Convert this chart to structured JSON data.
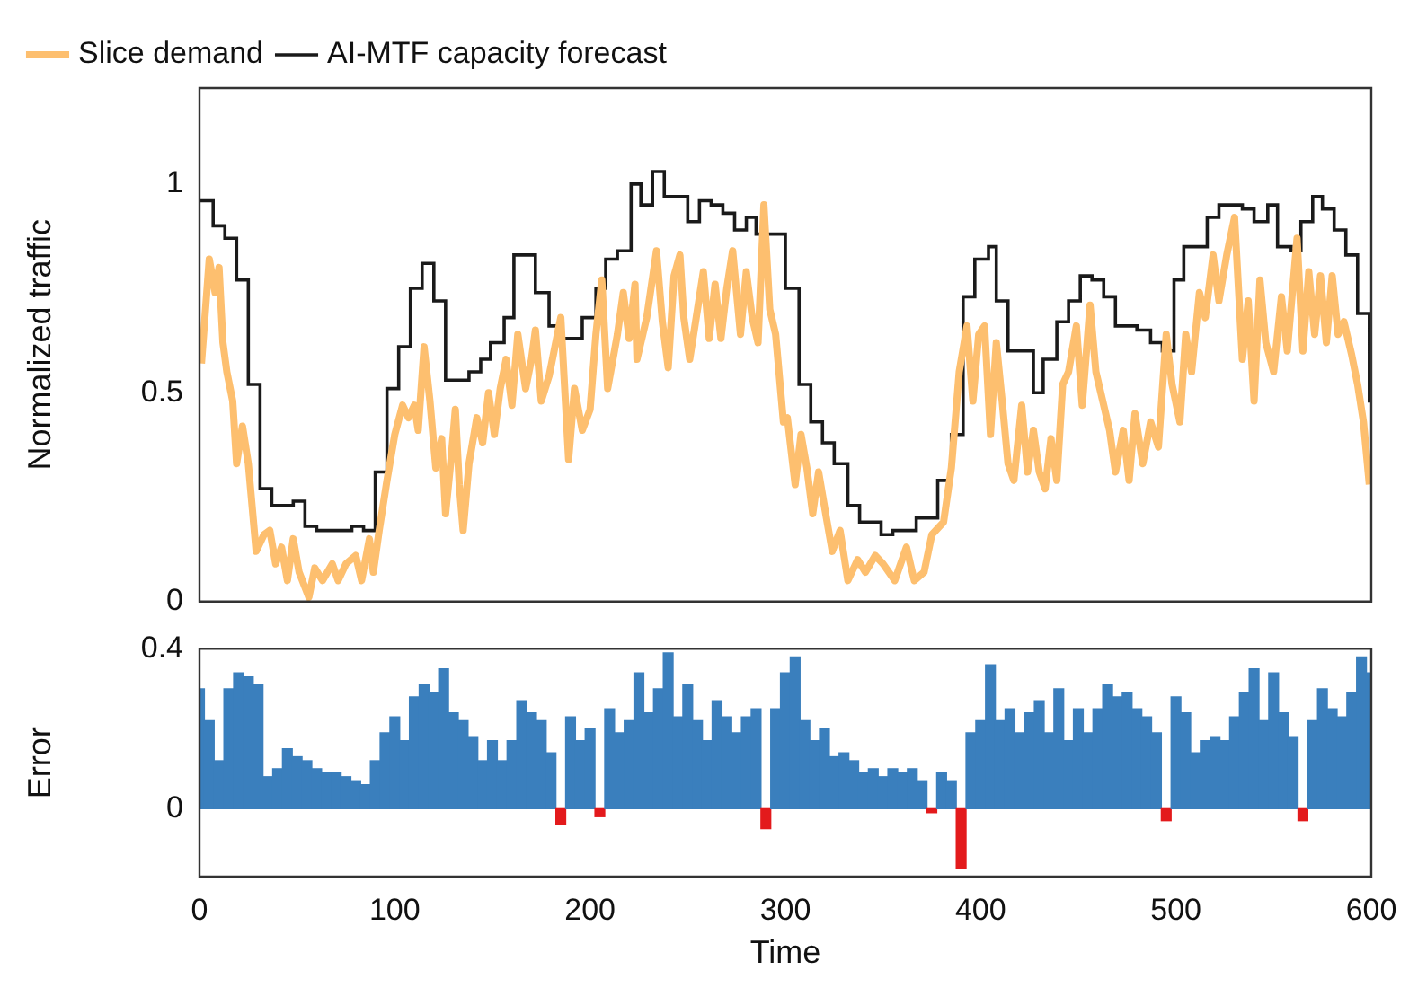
{
  "chart_data": [
    {
      "type": "line",
      "ylabel": "Normalized traffic",
      "xlim": [
        0,
        600
      ],
      "xticks": [
        0,
        100,
        200,
        300,
        400,
        500,
        600
      ],
      "ylim": [
        0,
        1.23
      ],
      "yticks": [
        0,
        0.5,
        1
      ],
      "tick_labels": "y",
      "grid": false,
      "legend": "top",
      "series": [
        {
          "name": "Slice demand",
          "color": "#fdbf6f",
          "x": [
            1,
            5,
            8,
            10,
            12,
            14,
            17,
            19,
            22,
            25,
            29,
            33,
            36,
            39,
            42,
            45,
            48,
            51,
            56,
            59,
            63,
            68,
            71,
            75,
            80,
            83,
            87,
            89,
            92,
            96,
            100,
            104,
            107,
            110,
            112,
            115,
            118,
            121,
            124,
            126,
            129,
            131,
            133,
            135,
            138,
            142,
            145,
            148,
            151,
            154,
            157,
            160,
            163,
            167,
            170,
            172,
            175,
            179,
            182,
            185,
            189,
            192,
            196,
            200,
            203,
            206,
            209,
            214,
            217,
            220,
            223,
            224,
            229,
            234,
            237,
            240,
            243,
            246,
            248,
            251,
            255,
            258,
            261,
            264,
            267,
            270,
            273,
            277,
            280,
            283,
            286,
            289,
            292,
            295,
            299,
            301,
            305,
            308,
            311,
            314,
            317,
            321,
            324,
            328,
            332,
            337,
            341,
            346,
            350,
            356,
            362,
            366,
            371,
            375,
            381,
            385,
            389,
            393,
            396,
            399,
            402,
            405,
            408,
            411,
            414,
            417,
            421,
            424,
            427,
            430,
            433,
            436,
            439,
            442,
            445,
            449,
            452,
            456,
            459,
            463,
            466,
            469,
            473,
            476,
            479,
            483,
            487,
            491,
            495,
            498,
            502,
            505,
            508,
            512,
            515,
            519,
            522,
            526,
            530,
            534,
            537,
            540,
            543,
            546,
            550,
            554,
            557,
            562,
            565,
            568,
            571,
            574,
            577,
            580,
            583,
            586,
            590,
            593,
            596,
            599
          ],
          "values": [
            0.57,
            0.82,
            0.74,
            0.8,
            0.62,
            0.55,
            0.48,
            0.33,
            0.42,
            0.33,
            0.12,
            0.16,
            0.17,
            0.09,
            0.13,
            0.05,
            0.15,
            0.07,
            0.01,
            0.08,
            0.05,
            0.09,
            0.05,
            0.09,
            0.11,
            0.05,
            0.15,
            0.07,
            0.17,
            0.29,
            0.4,
            0.47,
            0.44,
            0.47,
            0.41,
            0.61,
            0.48,
            0.32,
            0.39,
            0.21,
            0.35,
            0.46,
            0.28,
            0.17,
            0.33,
            0.44,
            0.38,
            0.5,
            0.4,
            0.51,
            0.58,
            0.47,
            0.64,
            0.51,
            0.58,
            0.65,
            0.48,
            0.54,
            0.61,
            0.68,
            0.34,
            0.51,
            0.41,
            0.46,
            0.64,
            0.77,
            0.51,
            0.64,
            0.74,
            0.63,
            0.76,
            0.58,
            0.68,
            0.84,
            0.67,
            0.56,
            0.78,
            0.83,
            0.68,
            0.58,
            0.7,
            0.79,
            0.63,
            0.76,
            0.63,
            0.75,
            0.84,
            0.64,
            0.79,
            0.68,
            0.62,
            0.95,
            0.7,
            0.64,
            0.43,
            0.44,
            0.28,
            0.4,
            0.32,
            0.21,
            0.31,
            0.2,
            0.12,
            0.17,
            0.05,
            0.1,
            0.07,
            0.11,
            0.09,
            0.05,
            0.13,
            0.05,
            0.07,
            0.16,
            0.19,
            0.32,
            0.55,
            0.66,
            0.48,
            0.64,
            0.66,
            0.4,
            0.62,
            0.48,
            0.33,
            0.29,
            0.47,
            0.31,
            0.41,
            0.31,
            0.27,
            0.39,
            0.29,
            0.52,
            0.55,
            0.66,
            0.47,
            0.71,
            0.55,
            0.47,
            0.41,
            0.31,
            0.41,
            0.29,
            0.45,
            0.33,
            0.43,
            0.37,
            0.64,
            0.52,
            0.43,
            0.64,
            0.55,
            0.74,
            0.68,
            0.83,
            0.72,
            0.83,
            0.92,
            0.58,
            0.72,
            0.48,
            0.77,
            0.62,
            0.55,
            0.73,
            0.6,
            0.87,
            0.6,
            0.79,
            0.64,
            0.78,
            0.62,
            0.78,
            0.64,
            0.67,
            0.59,
            0.52,
            0.43,
            0.28
          ]
        },
        {
          "name": "AI-MTF capacity forecast",
          "color": "#1a1a1a",
          "type": "step",
          "x": [
            0,
            7,
            13,
            19,
            25,
            31,
            37,
            48,
            54,
            60,
            72,
            78,
            84,
            90,
            96,
            102,
            108,
            114,
            120,
            126,
            132,
            138,
            144,
            149,
            156,
            161,
            172,
            179,
            185,
            196,
            203,
            208,
            214,
            221,
            226,
            232,
            238,
            250,
            256,
            262,
            268,
            274,
            280,
            285,
            300,
            307,
            313,
            319,
            325,
            332,
            338,
            349,
            355,
            367,
            378,
            385,
            391,
            397,
            404,
            408,
            414,
            427,
            432,
            439,
            445,
            451,
            457,
            463,
            469,
            480,
            487,
            493,
            499,
            504,
            516,
            522,
            534,
            540,
            547,
            552,
            559,
            564,
            570,
            575,
            581,
            587,
            593,
            599,
            600
          ],
          "values": [
            0.96,
            0.9,
            0.87,
            0.77,
            0.52,
            0.27,
            0.23,
            0.24,
            0.18,
            0.17,
            0.17,
            0.18,
            0.17,
            0.31,
            0.51,
            0.61,
            0.75,
            0.81,
            0.72,
            0.53,
            0.53,
            0.55,
            0.58,
            0.62,
            0.68,
            0.83,
            0.74,
            0.66,
            0.63,
            0.68,
            0.75,
            0.82,
            0.84,
            1,
            0.95,
            1.03,
            0.97,
            0.91,
            0.96,
            0.95,
            0.93,
            0.89,
            0.92,
            0.88,
            0.75,
            0.52,
            0.43,
            0.38,
            0.33,
            0.23,
            0.19,
            0.16,
            0.17,
            0.2,
            0.29,
            0.4,
            0.73,
            0.82,
            0.85,
            0.72,
            0.6,
            0.5,
            0.58,
            0.67,
            0.72,
            0.78,
            0.77,
            0.73,
            0.66,
            0.65,
            0.62,
            0.6,
            0.77,
            0.85,
            0.92,
            0.95,
            0.94,
            0.91,
            0.95,
            0.85,
            0.84,
            0.91,
            0.97,
            0.94,
            0.89,
            0.83,
            0.69,
            0.48,
            0.48
          ]
        }
      ]
    },
    {
      "type": "bar",
      "xlabel": "Time",
      "ylabel": "Error",
      "xlim": [
        0,
        600
      ],
      "xticks": [
        0,
        100,
        200,
        300,
        400,
        500,
        600
      ],
      "ylim": [
        -0.17,
        0.4
      ],
      "yticks": [
        0,
        0.4
      ],
      "grid": false,
      "x": [
        0,
        5,
        10,
        15,
        20,
        25,
        30,
        35,
        40,
        45,
        50,
        55,
        60,
        65,
        70,
        75,
        80,
        85,
        90,
        95,
        100,
        105,
        110,
        115,
        120,
        125,
        130,
        135,
        140,
        145,
        150,
        155,
        160,
        165,
        170,
        175,
        180,
        185,
        190,
        195,
        200,
        205,
        210,
        215,
        220,
        225,
        230,
        235,
        240,
        245,
        250,
        255,
        260,
        265,
        270,
        275,
        280,
        285,
        290,
        295,
        300,
        305,
        310,
        315,
        320,
        325,
        330,
        335,
        340,
        345,
        350,
        355,
        360,
        365,
        370,
        375,
        380,
        385,
        390,
        395,
        400,
        405,
        410,
        415,
        420,
        425,
        430,
        435,
        440,
        445,
        450,
        455,
        460,
        465,
        470,
        475,
        480,
        485,
        490,
        495,
        500,
        505,
        510,
        515,
        520,
        525,
        530,
        535,
        540,
        545,
        550,
        555,
        560,
        565,
        570,
        575,
        580,
        585,
        590,
        595,
        600
      ],
      "values": [
        0.3,
        0.22,
        0.12,
        0.3,
        0.34,
        0.33,
        0.31,
        0.08,
        0.1,
        0.15,
        0.13,
        0.12,
        0.1,
        0.09,
        0.09,
        0.08,
        0.07,
        0.06,
        0.12,
        0.19,
        0.23,
        0.17,
        0.28,
        0.31,
        0.29,
        0.35,
        0.24,
        0.22,
        0.18,
        0.12,
        0.17,
        0.12,
        0.17,
        0.27,
        0.24,
        0.22,
        0.14,
        -0.04,
        0.23,
        0.17,
        0.2,
        -0.02,
        0.25,
        0.19,
        0.22,
        0.34,
        0.24,
        0.3,
        0.39,
        0.23,
        0.31,
        0.22,
        0.17,
        0.27,
        0.23,
        0.19,
        0.23,
        0.25,
        -0.05,
        0.25,
        0.34,
        0.38,
        0.22,
        0.17,
        0.2,
        0.13,
        0.14,
        0.12,
        0.09,
        0.1,
        0.08,
        0.1,
        0.09,
        0.1,
        0.07,
        -0.01,
        0.09,
        0.07,
        -0.15,
        0.19,
        0.22,
        0.36,
        0.22,
        0.25,
        0.19,
        0.24,
        0.27,
        0.19,
        0.3,
        0.17,
        0.25,
        0.19,
        0.25,
        0.31,
        0.28,
        0.29,
        0.25,
        0.23,
        0.19,
        -0.03,
        0.28,
        0.24,
        0.14,
        0.17,
        0.18,
        0.17,
        0.23,
        0.29,
        0.35,
        0.22,
        0.34,
        0.24,
        0.18,
        -0.03,
        0.22,
        0.3,
        0.25,
        0.23,
        0.29,
        0.38,
        0.34
      ],
      "colors": [
        "#3a7fbd",
        "#3a7fbd",
        "#3a7fbd",
        "#3a7fbd",
        "#3a7fbd",
        "#3a7fbd",
        "#3a7fbd",
        "#3a7fbd",
        "#3a7fbd",
        "#3a7fbd",
        "#3a7fbd",
        "#3a7fbd",
        "#3a7fbd",
        "#3a7fbd",
        "#3a7fbd",
        "#3a7fbd",
        "#3a7fbd",
        "#3a7fbd",
        "#3a7fbd",
        "#3a7fbd",
        "#3a7fbd",
        "#3a7fbd",
        "#3a7fbd",
        "#3a7fbd",
        "#3a7fbd",
        "#3a7fbd",
        "#3a7fbd",
        "#3a7fbd",
        "#3a7fbd",
        "#3a7fbd",
        "#3a7fbd",
        "#3a7fbd",
        "#3a7fbd",
        "#3a7fbd",
        "#3a7fbd",
        "#3a7fbd",
        "#3a7fbd",
        "#e31a1c",
        "#3a7fbd",
        "#3a7fbd",
        "#3a7fbd",
        "#e31a1c",
        "#3a7fbd",
        "#3a7fbd",
        "#3a7fbd",
        "#3a7fbd",
        "#3a7fbd",
        "#3a7fbd",
        "#3a7fbd",
        "#3a7fbd",
        "#3a7fbd",
        "#3a7fbd",
        "#3a7fbd",
        "#3a7fbd",
        "#3a7fbd",
        "#3a7fbd",
        "#3a7fbd",
        "#3a7fbd",
        "#e31a1c",
        "#3a7fbd",
        "#3a7fbd",
        "#3a7fbd",
        "#3a7fbd",
        "#3a7fbd",
        "#3a7fbd",
        "#3a7fbd",
        "#3a7fbd",
        "#3a7fbd",
        "#3a7fbd",
        "#3a7fbd",
        "#3a7fbd",
        "#3a7fbd",
        "#3a7fbd",
        "#3a7fbd",
        "#3a7fbd",
        "#e31a1c",
        "#3a7fbd",
        "#3a7fbd",
        "#e31a1c",
        "#3a7fbd",
        "#3a7fbd",
        "#3a7fbd",
        "#3a7fbd",
        "#3a7fbd",
        "#3a7fbd",
        "#3a7fbd",
        "#3a7fbd",
        "#3a7fbd",
        "#3a7fbd",
        "#3a7fbd",
        "#3a7fbd",
        "#3a7fbd",
        "#3a7fbd",
        "#3a7fbd",
        "#3a7fbd",
        "#3a7fbd",
        "#3a7fbd",
        "#3a7fbd",
        "#3a7fbd",
        "#e31a1c",
        "#3a7fbd",
        "#3a7fbd",
        "#3a7fbd",
        "#3a7fbd",
        "#3a7fbd",
        "#3a7fbd",
        "#3a7fbd",
        "#3a7fbd",
        "#3a7fbd",
        "#3a7fbd",
        "#3a7fbd",
        "#3a7fbd",
        "#3a7fbd",
        "#e31a1c",
        "#3a7fbd",
        "#3a7fbd",
        "#3a7fbd",
        "#3a7fbd",
        "#3a7fbd",
        "#3a7fbd",
        "#3a7fbd"
      ]
    }
  ]
}
